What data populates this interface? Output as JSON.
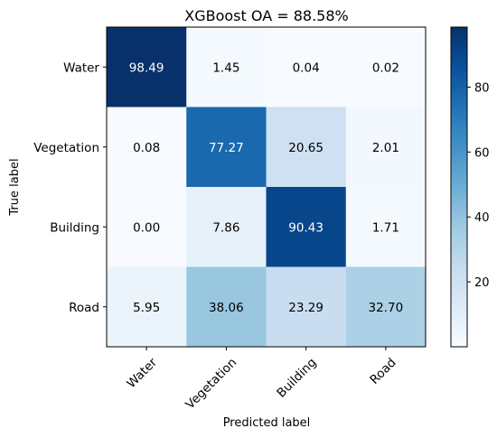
{
  "chart_data": {
    "type": "heatmap",
    "title": "XGBoost OA = 88.58%",
    "xlabel": "Predicted label",
    "ylabel": "True label",
    "x_categories": [
      "Water",
      "Vegetation",
      "Building",
      "Road"
    ],
    "y_categories": [
      "Water",
      "Vegetation",
      "Building",
      "Road"
    ],
    "values": [
      [
        "98.49",
        "1.45",
        "0.04",
        "0.02"
      ],
      [
        "0.08",
        "77.27",
        "20.65",
        "2.01"
      ],
      [
        "0.00",
        "7.86",
        "90.43",
        "1.71"
      ],
      [
        "5.95",
        "38.06",
        "23.29",
        "32.70"
      ]
    ],
    "color_range": [
      0,
      98.49
    ],
    "colormap": "Blues",
    "colorbar_ticks": [
      "20",
      "40",
      "60",
      "80"
    ],
    "grid": false
  }
}
